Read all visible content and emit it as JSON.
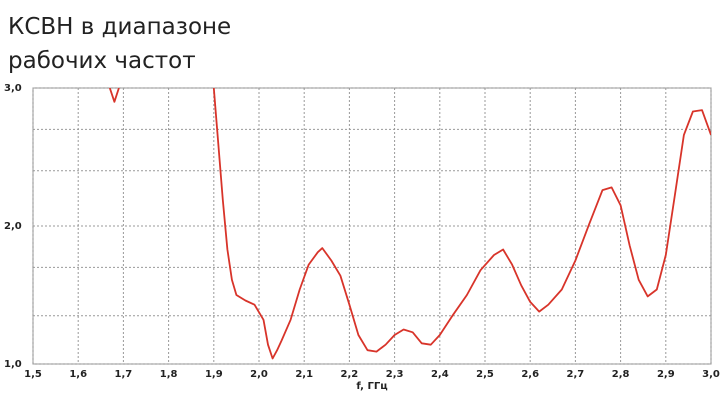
{
  "chart_data": {
    "type": "line",
    "title_lines": [
      "КСВН в диапазоне",
      "рабочих частот"
    ],
    "xlabel": "f, ГГц",
    "x": [
      1.67,
      1.68,
      1.69,
      1.8,
      1.9,
      1.92,
      1.93,
      1.94,
      1.95,
      1.97,
      1.99,
      2.01,
      2.02,
      2.03,
      2.04,
      2.05,
      2.07,
      2.09,
      2.11,
      2.13,
      2.14,
      2.16,
      2.18,
      2.2,
      2.22,
      2.24,
      2.26,
      2.28,
      2.3,
      2.32,
      2.34,
      2.36,
      2.38,
      2.4,
      2.43,
      2.46,
      2.49,
      2.52,
      2.54,
      2.56,
      2.58,
      2.6,
      2.62,
      2.64,
      2.67,
      2.7,
      2.73,
      2.76,
      2.78,
      2.8,
      2.82,
      2.84,
      2.86,
      2.88,
      2.9,
      2.92,
      2.94,
      2.96,
      2.98,
      3.0
    ],
    "series": [
      {
        "color": "#d8342a",
        "values": [
          3.0,
          2.9,
          3.0,
          null,
          3.0,
          2.19,
          1.83,
          1.61,
          1.5,
          1.46,
          1.43,
          1.32,
          1.14,
          1.04,
          1.1,
          1.17,
          1.32,
          1.54,
          1.72,
          1.81,
          1.84,
          1.75,
          1.64,
          1.43,
          1.21,
          1.1,
          1.09,
          1.14,
          1.21,
          1.25,
          1.23,
          1.15,
          1.14,
          1.21,
          1.36,
          1.5,
          1.68,
          1.79,
          1.83,
          1.72,
          1.57,
          1.45,
          1.38,
          1.43,
          1.54,
          1.75,
          2.01,
          2.26,
          2.28,
          2.15,
          1.86,
          1.61,
          1.49,
          1.54,
          1.79,
          2.22,
          2.66,
          2.83,
          2.84,
          2.66
        ]
      }
    ],
    "xlim": [
      1.5,
      3.0
    ],
    "xticks": [
      {
        "value": 1.5,
        "label": "1,5"
      },
      {
        "value": 1.6,
        "label": "1,6"
      },
      {
        "value": 1.7,
        "label": "1,7"
      },
      {
        "value": 1.8,
        "label": "1,8"
      },
      {
        "value": 1.9,
        "label": "1,9"
      },
      {
        "value": 2.0,
        "label": "2,0"
      },
      {
        "value": 2.1,
        "label": "2,1"
      },
      {
        "value": 2.2,
        "label": "2,2"
      },
      {
        "value": 2.3,
        "label": "2,3"
      },
      {
        "value": 2.4,
        "label": "2,4"
      },
      {
        "value": 2.5,
        "label": "2,5"
      },
      {
        "value": 2.6,
        "label": "2,6"
      },
      {
        "value": 2.7,
        "label": "2,7"
      },
      {
        "value": 2.8,
        "label": "2,8"
      },
      {
        "value": 2.9,
        "label": "2,9"
      },
      {
        "value": 3.0,
        "label": "3,0"
      }
    ],
    "ylim": [
      1.0,
      3.0
    ],
    "yticks": [
      {
        "value": 1.0,
        "label": "1,0"
      },
      {
        "value": 2.0,
        "label": "2,0"
      },
      {
        "value": 3.0,
        "label": "3,0"
      }
    ],
    "minor_yticks": [
      1.35,
      1.7,
      2.4,
      2.7
    ],
    "grid": true
  }
}
